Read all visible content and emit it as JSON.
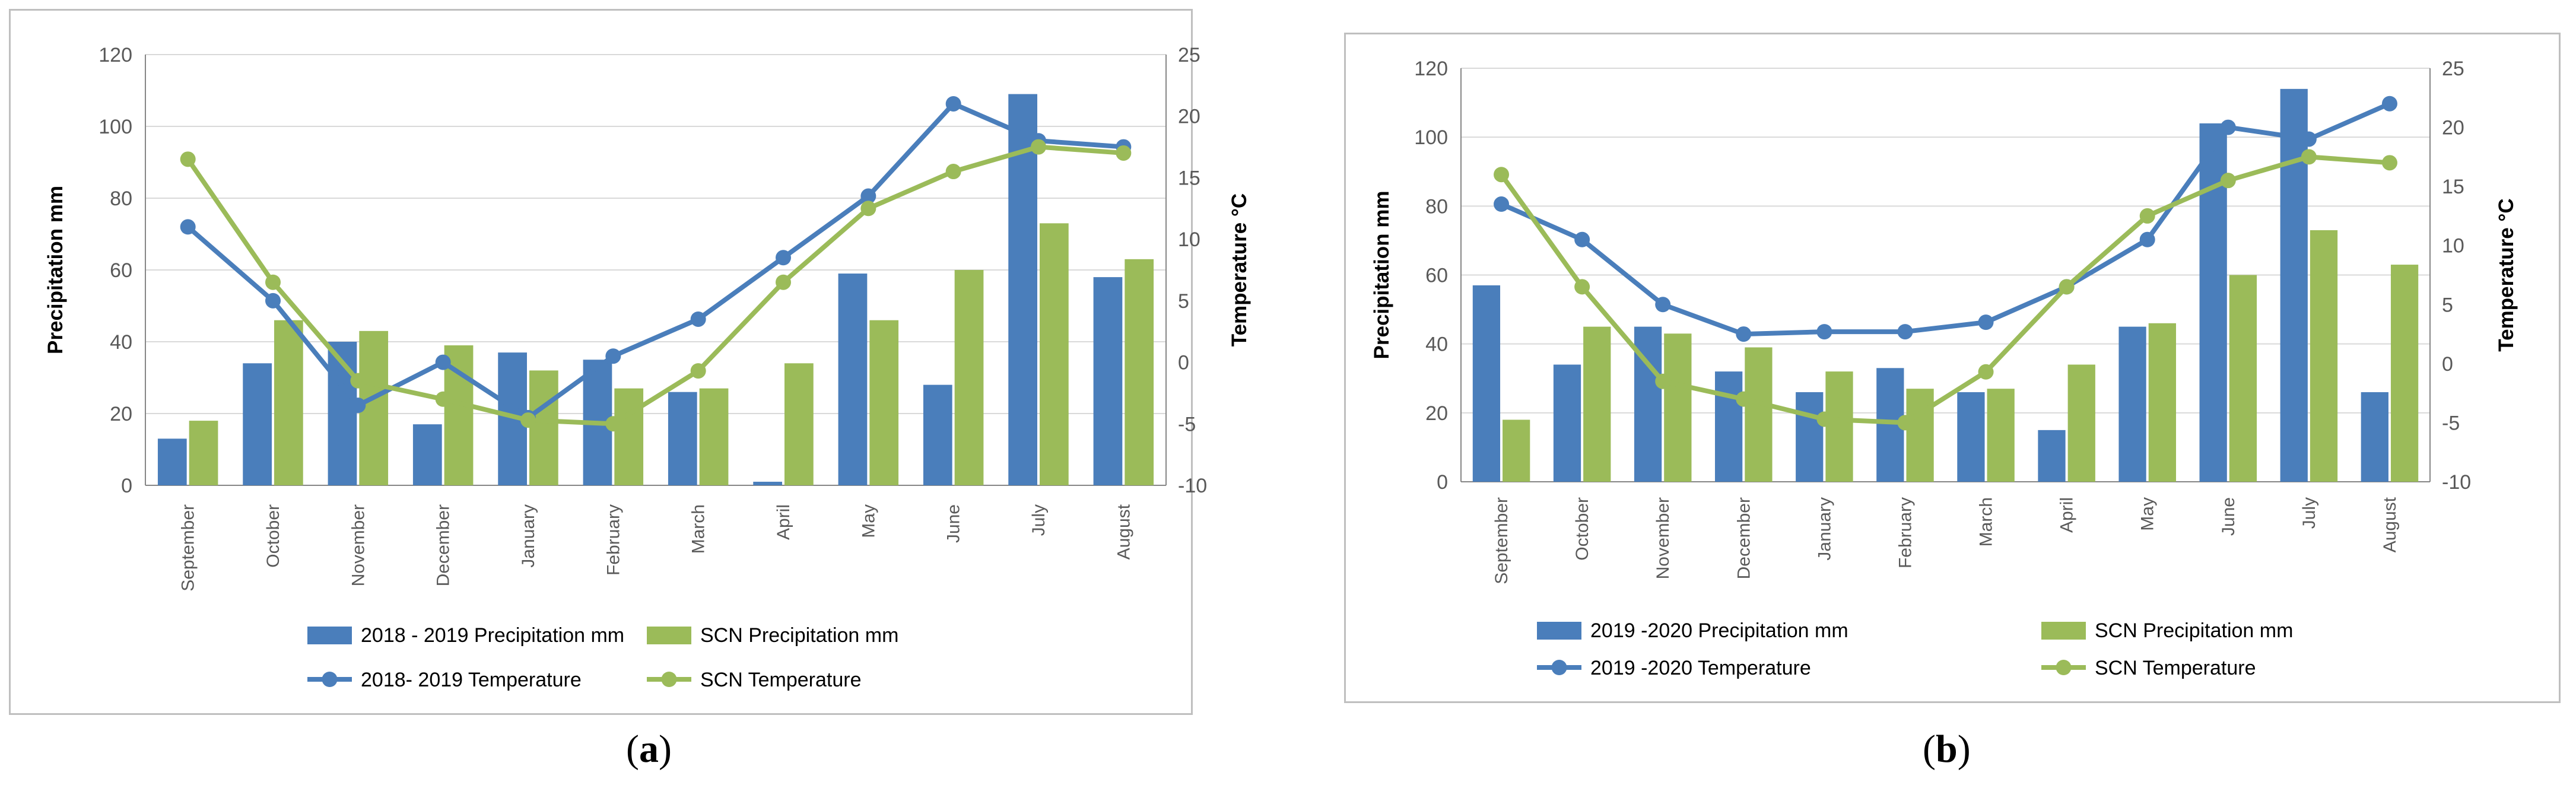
{
  "colors": {
    "blue": "#4a7ebb",
    "green": "#9bbb59",
    "grid": "#d9d9d9",
    "axis": "#868686"
  },
  "captions": {
    "a": {
      "open": "(",
      "letter": "a",
      "close": ")"
    },
    "b": {
      "open": "(",
      "letter": "b",
      "close": ")"
    }
  },
  "chart_data": [
    {
      "type": "bar+line",
      "panel": "a",
      "categories": [
        "September",
        "October",
        "November",
        "December",
        "January",
        "February",
        "March",
        "April",
        "May",
        "June",
        "July",
        "August"
      ],
      "ylabel": "Precipitation mm",
      "y2label": "Temperature °C",
      "ylim": [
        0,
        120
      ],
      "y2lim": [
        -10,
        25
      ],
      "yticks": [
        "0",
        "20",
        "40",
        "60",
        "80",
        "100",
        "120"
      ],
      "y2ticks": [
        "-10",
        "-5",
        "0",
        "5",
        "10",
        "15",
        "20",
        "25"
      ],
      "grid": true,
      "bars": [
        {
          "name": "2018 - 2019 Precipitation mm",
          "color": "blue",
          "values": [
            13,
            34,
            40,
            17,
            37,
            35,
            26,
            1,
            59,
            28,
            109,
            58
          ]
        },
        {
          "name": "SCN Precipitation mm",
          "color": "green",
          "values": [
            18,
            46,
            43,
            39,
            32,
            27,
            27,
            34,
            46,
            60,
            73,
            63
          ]
        }
      ],
      "lines": [
        {
          "name": "2018- 2019 Temperature",
          "color": "blue",
          "values": [
            11,
            5,
            -3.5,
            0,
            -4.5,
            0.5,
            3.5,
            8.5,
            13.5,
            21,
            18,
            17.5
          ]
        },
        {
          "name": "SCN Temperature",
          "color": "green",
          "values": [
            16.5,
            6.5,
            -1.5,
            -3,
            -4.7,
            -5,
            -0.7,
            6.5,
            12.5,
            15.5,
            17.5,
            17
          ]
        }
      ],
      "legend_position": "bottom"
    },
    {
      "type": "bar+line",
      "panel": "b",
      "categories": [
        "September",
        "October",
        "November",
        "December",
        "January",
        "February",
        "March",
        "April",
        "May",
        "June",
        "July",
        "August"
      ],
      "ylabel": "Precipitation mm",
      "y2label": "Temperature °C",
      "ylim": [
        0,
        120
      ],
      "y2lim": [
        -10,
        25
      ],
      "yticks": [
        "0",
        "20",
        "40",
        "60",
        "80",
        "100",
        "120"
      ],
      "y2ticks": [
        "-10",
        "-5",
        "0",
        "5",
        "10",
        "15",
        "20",
        "25"
      ],
      "grid": true,
      "bars": [
        {
          "name": "2019 -2020 Precipitation mm",
          "color": "blue",
          "values": [
            57,
            34,
            45,
            32,
            26,
            33,
            26,
            15,
            45,
            104,
            114,
            26
          ]
        },
        {
          "name": "SCN Precipitation mm",
          "color": "green",
          "values": [
            18,
            45,
            43,
            39,
            32,
            27,
            27,
            34,
            46,
            60,
            73,
            63
          ]
        }
      ],
      "lines": [
        {
          "name": "2019 -2020 Temperature",
          "color": "blue",
          "values": [
            13.5,
            10.5,
            5,
            2.5,
            2.7,
            2.7,
            3.5,
            6.5,
            10.5,
            20,
            19,
            22
          ]
        },
        {
          "name": "SCN Temperature",
          "color": "green",
          "values": [
            16,
            6.5,
            -1.5,
            -3,
            -4.7,
            -5,
            -0.7,
            6.5,
            12.5,
            15.5,
            17.5,
            17
          ]
        }
      ],
      "legend_position": "bottom"
    }
  ]
}
